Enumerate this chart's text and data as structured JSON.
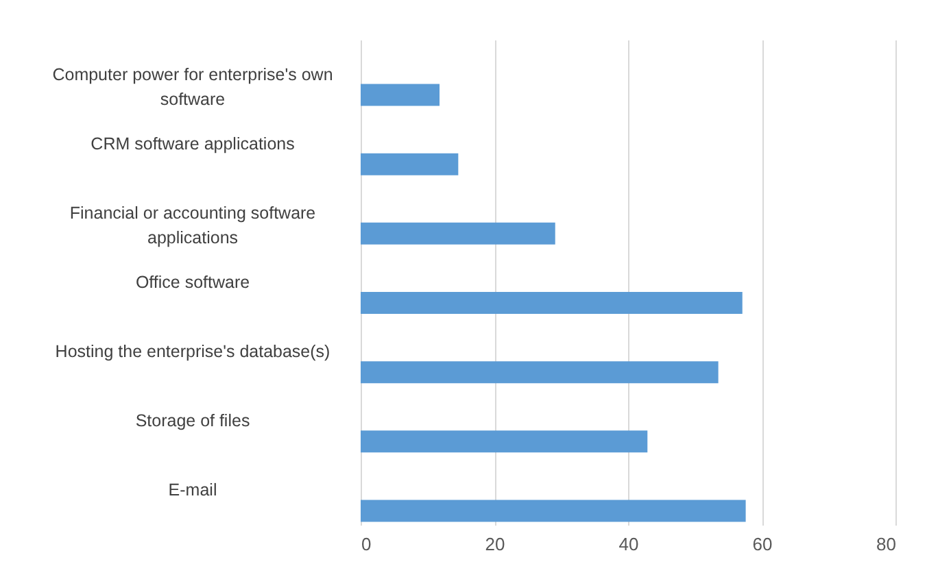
{
  "chart_data": {
    "type": "bar",
    "orientation": "horizontal",
    "categories": [
      "Computer power for enterprise's own software",
      "CRM software applications",
      "Financial or accounting software applications",
      "Office software",
      "Hosting the enterprise's database(s)",
      "Storage of files",
      "E-mail"
    ],
    "values": [
      11.8,
      14.6,
      29.1,
      57.1,
      53.5,
      42.9,
      57.6
    ],
    "color": "#5b9bd5",
    "xlim": [
      0,
      80
    ],
    "xticks": [
      0,
      20,
      40,
      60,
      80
    ],
    "grid": "x"
  }
}
